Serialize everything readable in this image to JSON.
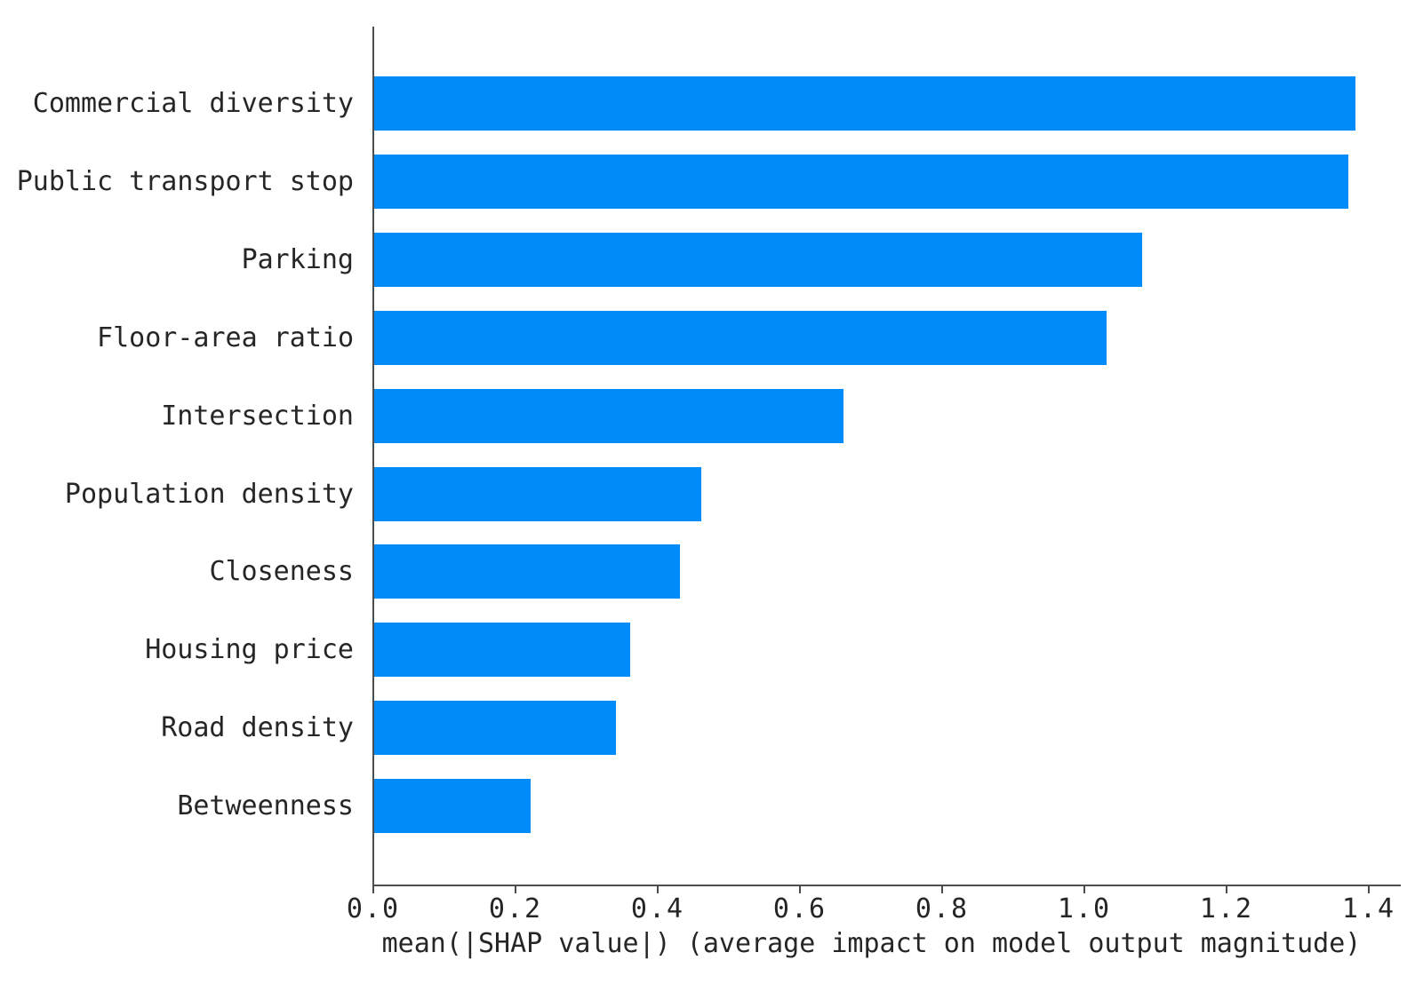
{
  "chart_data": {
    "type": "bar",
    "orientation": "horizontal",
    "title": "",
    "categories": [
      "Commercial diversity",
      "Public transport stop",
      "Parking",
      "Floor-area ratio",
      "Intersection",
      "Population density",
      "Closeness",
      "Housing price",
      "Road density",
      "Betweenness"
    ],
    "values": [
      1.38,
      1.37,
      1.08,
      1.03,
      0.66,
      0.46,
      0.43,
      0.36,
      0.34,
      0.22
    ],
    "xlabel": "mean(|SHAP value|) (average impact on model output magnitude)",
    "ylabel": "",
    "x_ticks": [
      0.0,
      0.2,
      0.4,
      0.6,
      0.8,
      1.0,
      1.2,
      1.4
    ],
    "x_tick_labels": [
      "0.0",
      "0.2",
      "0.4",
      "0.6",
      "0.8",
      "1.0",
      "1.2",
      "1.4"
    ],
    "xlim": [
      0.0,
      1.44
    ],
    "grid": false,
    "legend_position": "none",
    "bar_color": "#008bfb",
    "axis_color": "#4d4d4d",
    "text_color": "#262626",
    "background_color": "#ffffff"
  }
}
